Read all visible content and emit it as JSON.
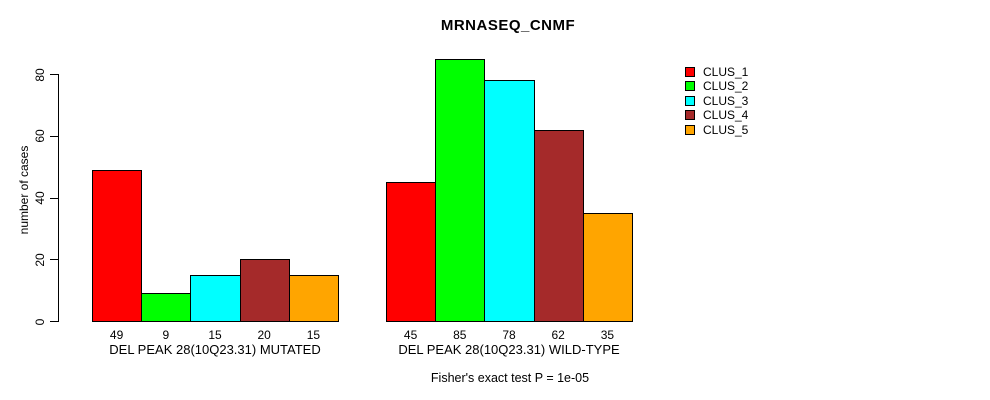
{
  "title": "MRNASEQ_CNMF",
  "chart_data": {
    "type": "bar",
    "title": "MRNASEQ_CNMF",
    "xlabel": "",
    "ylabel": "number of cases",
    "yticks": [
      0,
      20,
      40,
      60,
      80
    ],
    "ylim": [
      0,
      88
    ],
    "grid": false,
    "legend_position": "right-outside",
    "categories": [
      "DEL PEAK 28(10Q23.31) MUTATED",
      "DEL PEAK 28(10Q23.31) WILD-TYPE"
    ],
    "series": [
      {
        "name": "CLUS_1",
        "color": "#FF0000",
        "values": [
          49,
          45
        ]
      },
      {
        "name": "CLUS_2",
        "color": "#00FF00",
        "values": [
          9,
          85
        ]
      },
      {
        "name": "CLUS_3",
        "color": "#00FFFF",
        "values": [
          15,
          78
        ]
      },
      {
        "name": "CLUS_4",
        "color": "#A52A2A",
        "values": [
          20,
          62
        ]
      },
      {
        "name": "CLUS_5",
        "color": "#FFA500",
        "values": [
          15,
          35
        ]
      }
    ],
    "bar_value_labels_shown": true,
    "annotation": "Fisher's exact test P = 1e-05"
  }
}
